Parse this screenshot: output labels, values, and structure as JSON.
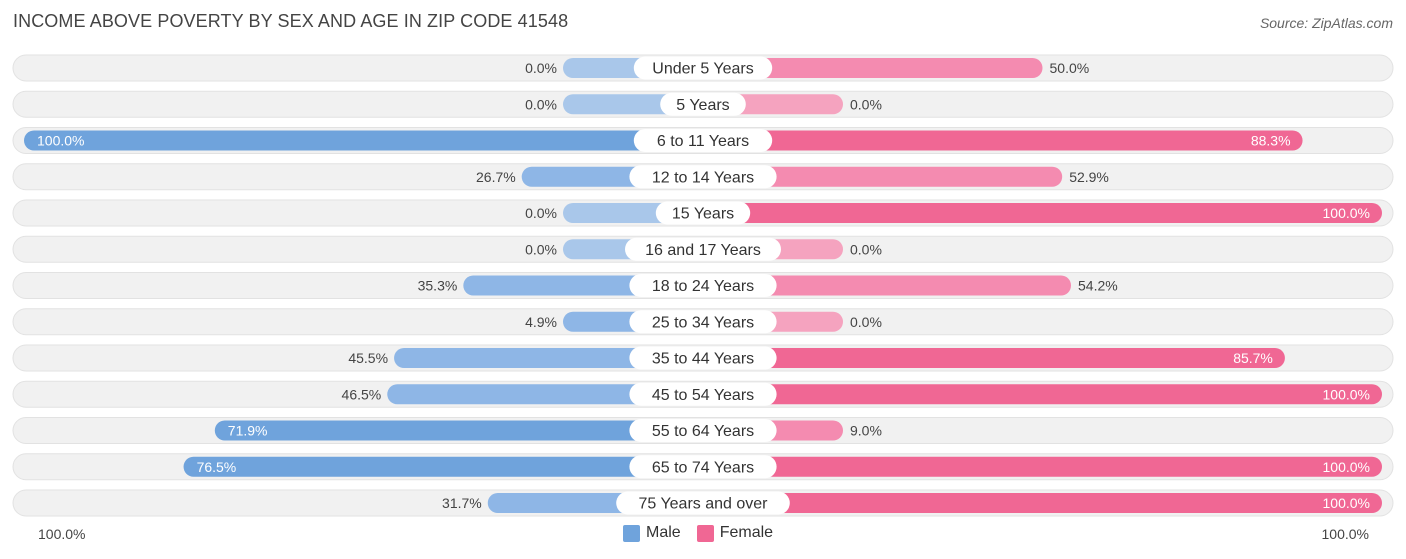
{
  "title": "INCOME ABOVE POVERTY BY SEX AND AGE IN ZIP CODE 41548",
  "source": "Source: ZipAtlas.com",
  "colors": {
    "male_strong": "#6fa3dc",
    "male_light": "#a9c7ea",
    "female_strong": "#f06794",
    "female_light": "#f5a3bf",
    "track": "#f1f1f1"
  },
  "axis": {
    "left_label": "100.0%",
    "right_label": "100.0%"
  },
  "legend": {
    "male_label": "Male",
    "female_label": "Female"
  },
  "chart_data": {
    "type": "bar",
    "orientation": "horizontal-diverging",
    "title": "INCOME ABOVE POVERTY BY SEX AND AGE IN ZIP CODE 41548",
    "categories": [
      "Under 5 Years",
      "5 Years",
      "6 to 11 Years",
      "12 to 14 Years",
      "15 Years",
      "16 and 17 Years",
      "18 to 24 Years",
      "25 to 34 Years",
      "35 to 44 Years",
      "45 to 54 Years",
      "55 to 64 Years",
      "65 to 74 Years",
      "75 Years and over"
    ],
    "series": [
      {
        "name": "Male",
        "values": [
          0.0,
          0.0,
          100.0,
          26.7,
          0.0,
          0.0,
          35.3,
          4.9,
          45.5,
          46.5,
          71.9,
          76.5,
          31.7
        ],
        "labels": [
          "0.0%",
          "0.0%",
          "100.0%",
          "26.7%",
          "0.0%",
          "0.0%",
          "35.3%",
          "4.9%",
          "45.5%",
          "46.5%",
          "71.9%",
          "76.5%",
          "31.7%"
        ]
      },
      {
        "name": "Female",
        "values": [
          50.0,
          0.0,
          88.3,
          52.9,
          100.0,
          0.0,
          54.2,
          0.0,
          85.7,
          100.0,
          9.0,
          100.0,
          100.0
        ],
        "labels": [
          "50.0%",
          "0.0%",
          "88.3%",
          "52.9%",
          "100.0%",
          "0.0%",
          "54.2%",
          "0.0%",
          "85.7%",
          "100.0%",
          "9.0%",
          "100.0%",
          "100.0%"
        ]
      }
    ],
    "xlim": [
      -100,
      100
    ],
    "unit": "%",
    "legend_position": "bottom-center"
  }
}
